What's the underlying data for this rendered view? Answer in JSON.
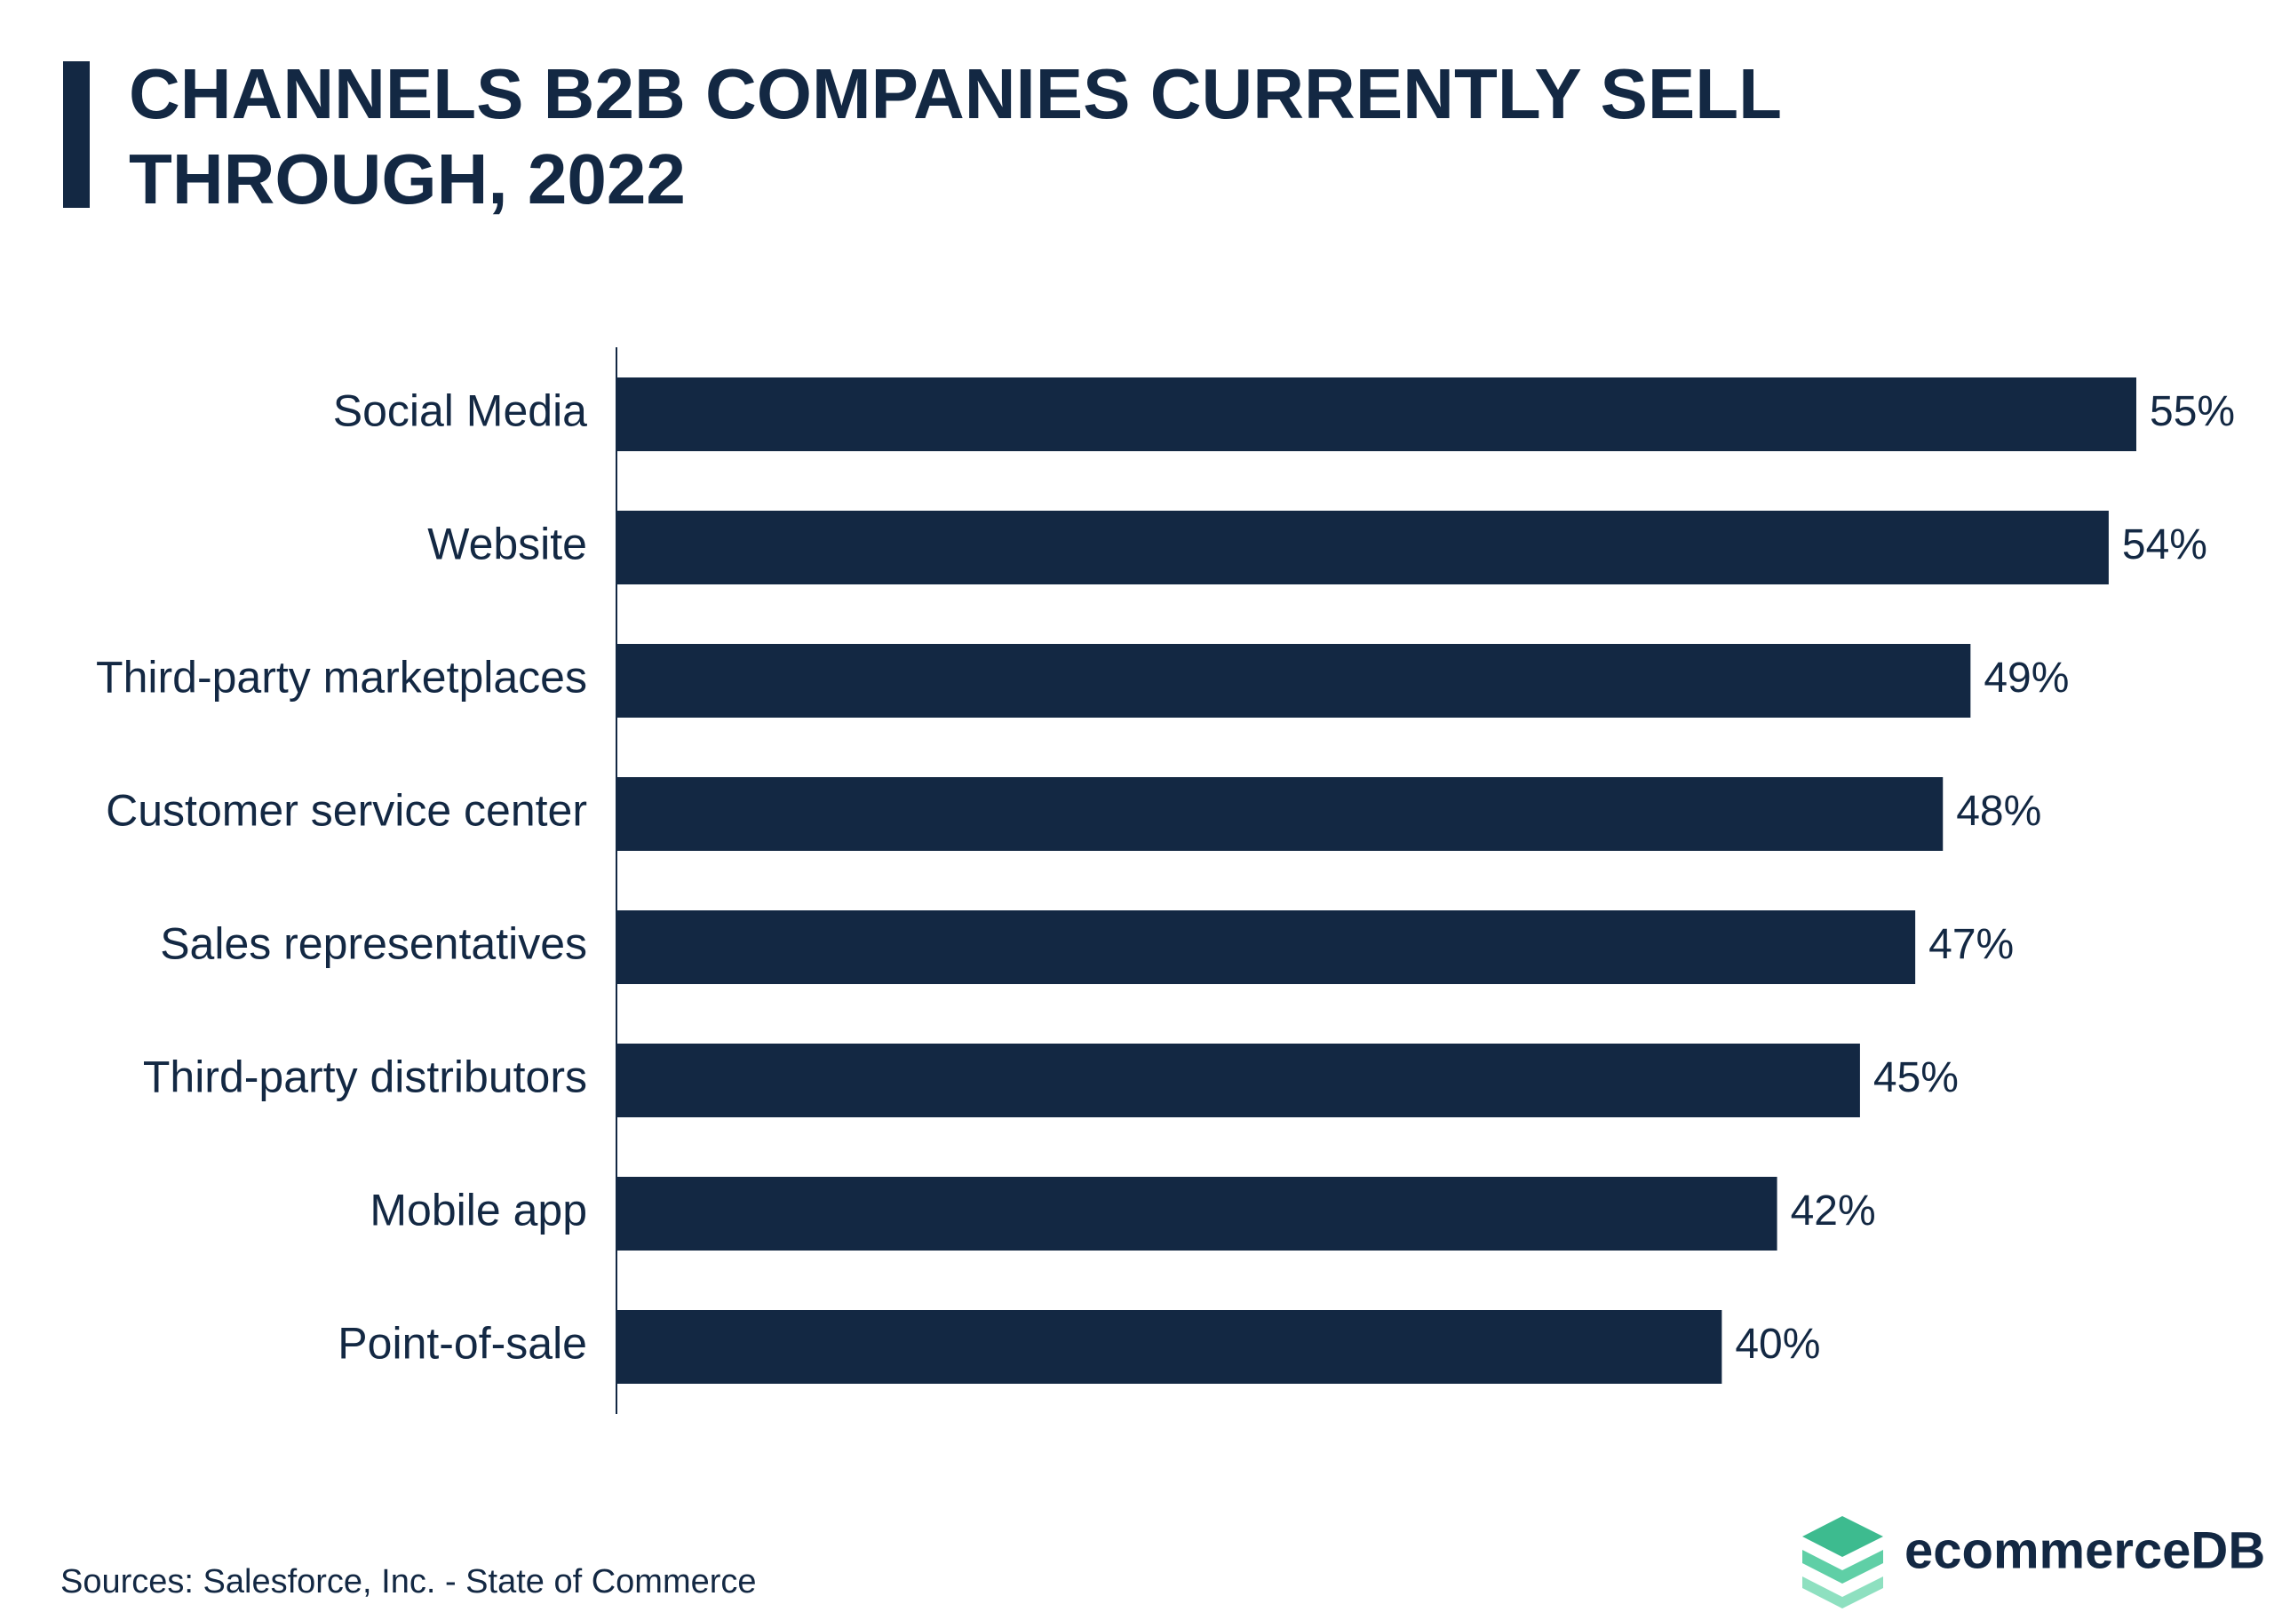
{
  "chart_data": {
    "type": "bar",
    "orientation": "horizontal",
    "title": "CHANNELS B2B COMPANIES CURRENTLY SELL THROUGH, 2022",
    "categories": [
      "Social Media",
      "Website",
      "Third-party marketplaces",
      "Customer service center",
      "Sales representatives",
      "Third-party distributors",
      "Mobile app",
      "Point-of-sale"
    ],
    "values": [
      55,
      54,
      49,
      48,
      47,
      45,
      42,
      40
    ],
    "value_labels": [
      "55%",
      "54%",
      "49%",
      "48%",
      "47%",
      "45%",
      "42%",
      "40%"
    ],
    "color": "#132843",
    "source": "Sources:  Salesforce, Inc. - State of Commerce",
    "brand": "ecommerceDB"
  }
}
